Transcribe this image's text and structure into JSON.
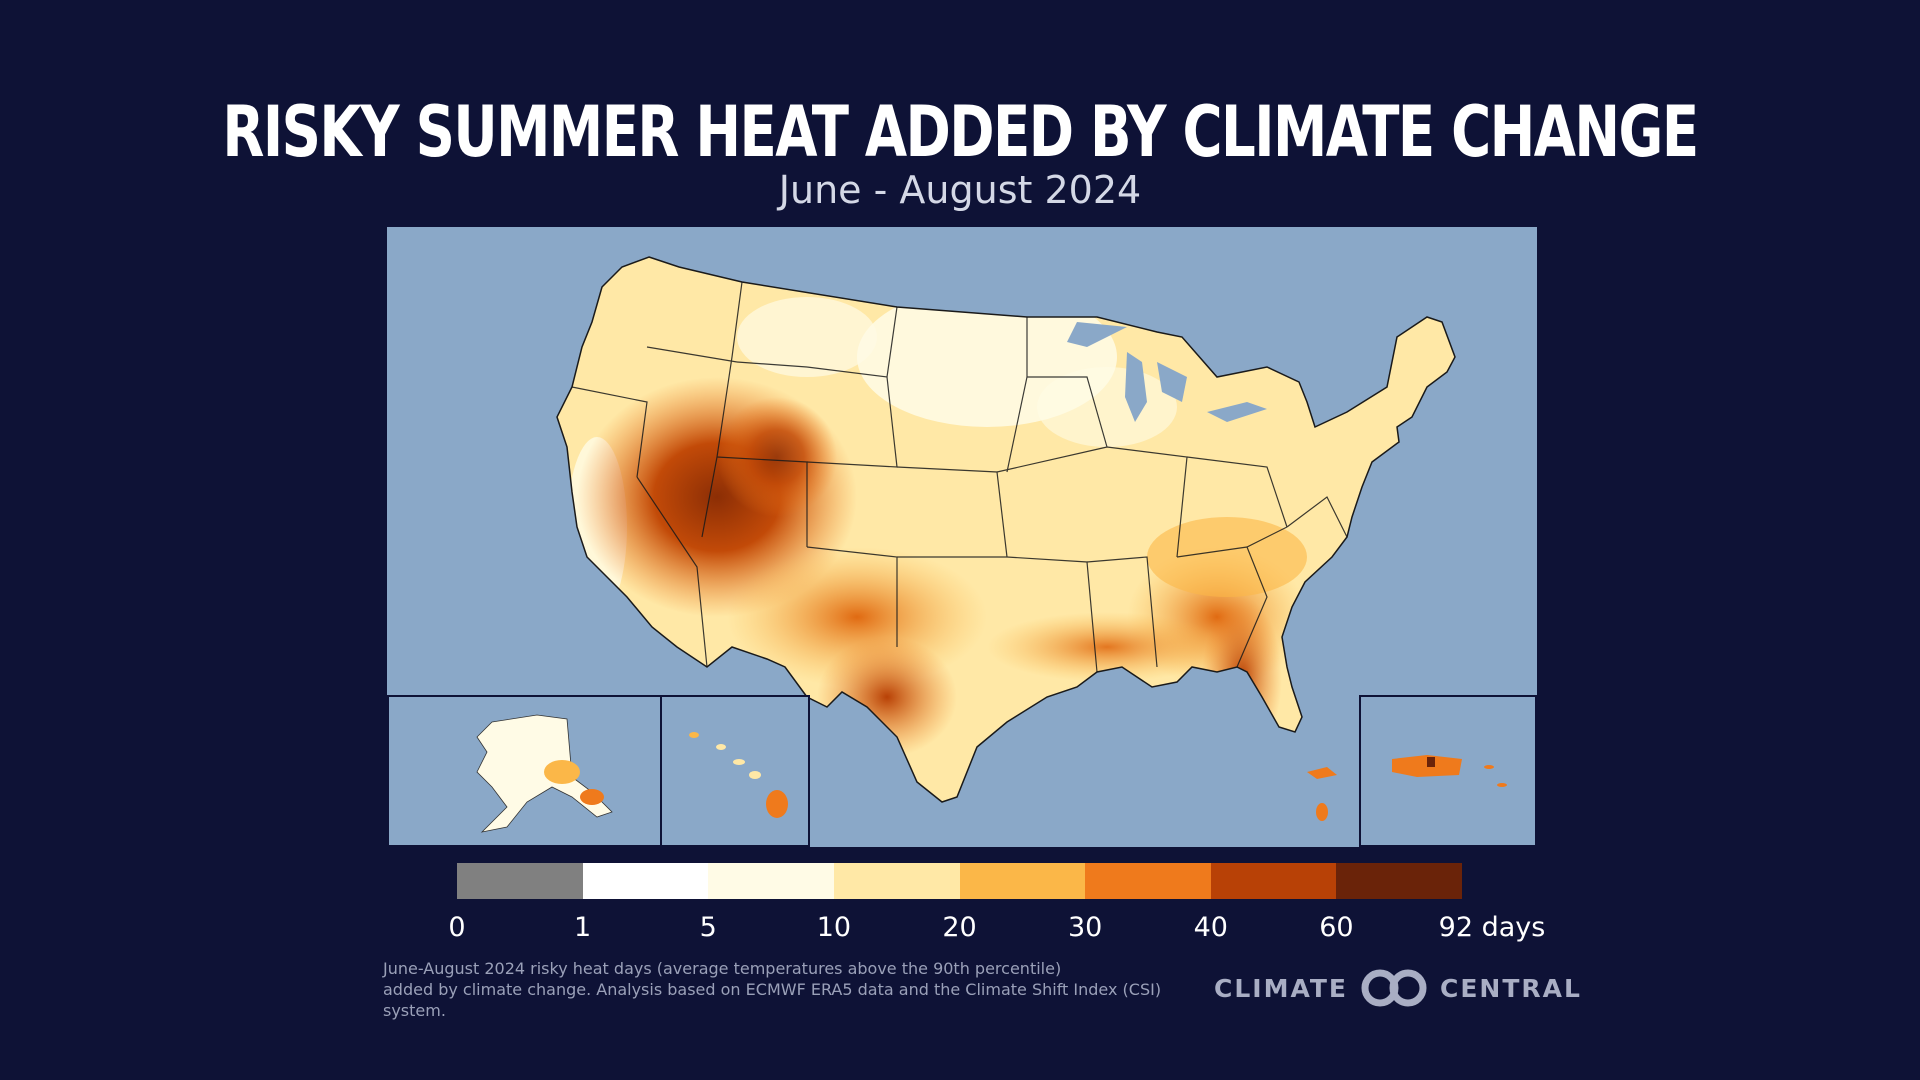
{
  "title": "RISKY SUMMER HEAT ADDED BY CLIMATE CHANGE",
  "subtitle": "June - August 2024",
  "legend": {
    "bins": [
      {
        "label": "0",
        "color": "#808080"
      },
      {
        "label": "1",
        "color": "#ffffff"
      },
      {
        "label": "5",
        "color": "#fffbe6"
      },
      {
        "label": "10",
        "color": "#ffe8a6"
      },
      {
        "label": "20",
        "color": "#fbb748"
      },
      {
        "label": "30",
        "color": "#ef7a1c"
      },
      {
        "label": "40",
        "color": "#b84106"
      },
      {
        "label": "60",
        "color": "#6a2309"
      }
    ],
    "tick_labels": [
      "0",
      "1",
      "5",
      "10",
      "20",
      "30",
      "40",
      "60",
      "92 days"
    ]
  },
  "map": {
    "water_color": "#8aa8c8",
    "regions": [
      "contiguous-us",
      "alaska-inset",
      "hawaii-inset",
      "puerto-rico-inset"
    ]
  },
  "footnote": {
    "line1": "June-August 2024 risky heat days (average temperatures above the 90th percentile)",
    "line2": "added by climate change. Analysis based on ECMWF ERA5 data and the Climate Shift Index (CSI) system."
  },
  "logo": {
    "left_text": "CLIMATE",
    "right_text": "CENTRAL",
    "icon": "climate-central-loops-icon"
  }
}
